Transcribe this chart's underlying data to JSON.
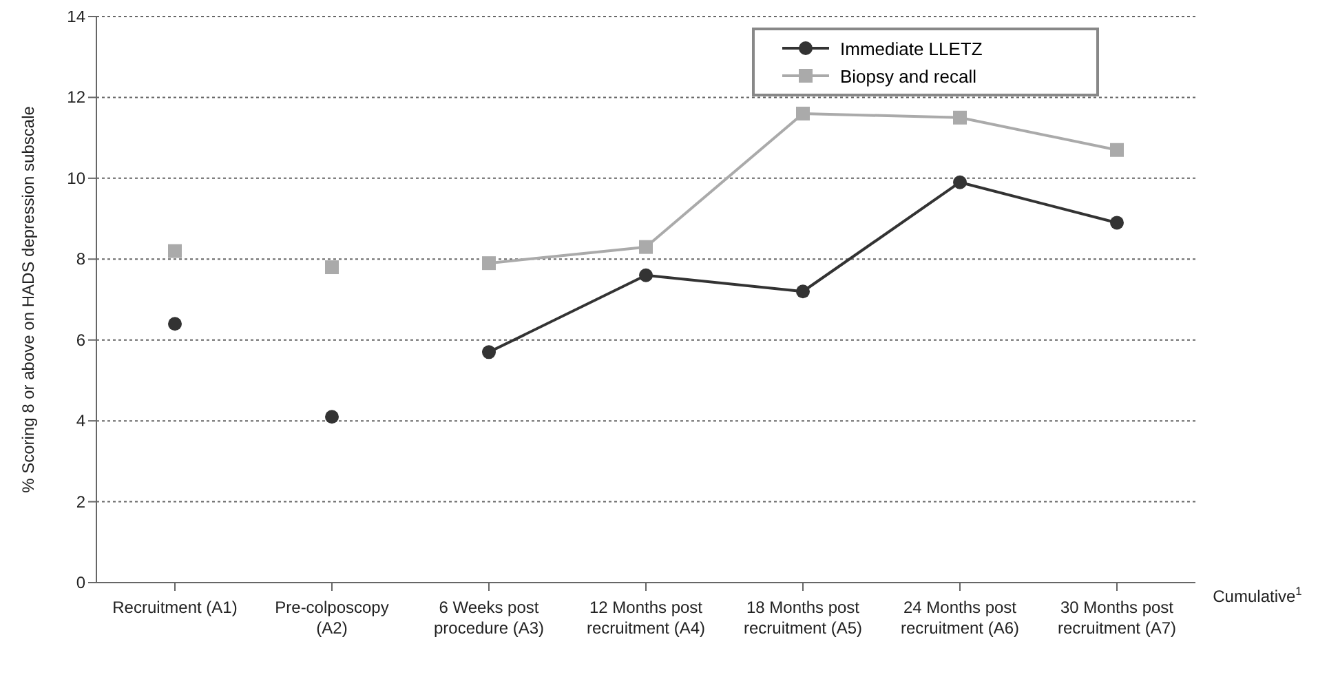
{
  "chart_data": {
    "type": "line",
    "ylabel": "% Scoring 8 or above on HADS depression subscale",
    "xlabel": "Cumulative$^{1}$",
    "categories": [
      "Recruitment (A1)",
      "Pre-colposcopy (A2)",
      "6 Weeks post procedure (A3)",
      "12 Months post recruitment (A4)",
      "18 Months post recruitment (A5)",
      "24 Months post recruitment (A6)",
      "30 Months post recruitment (A7)"
    ],
    "series": [
      {
        "name": "Immediate LLETZ",
        "color": "#333333",
        "marker": "circle",
        "values": [
          null,
          null,
          5.7,
          7.6,
          7.2,
          9.9,
          8.9
        ]
      },
      {
        "name": "Biopsy and recall",
        "color": "#aaaaaa",
        "marker": "square",
        "values": [
          null,
          null,
          7.9,
          8.3,
          11.6,
          11.5,
          10.7
        ]
      },
      {
        "type": "scatter",
        "color": "#333333",
        "marker": "circle",
        "x": [
          "Recruitment (A1)",
          "Pre-colposcopy (A2)"
        ],
        "values": [
          6.4,
          4.1
        ]
      },
      {
        "type": "scatter",
        "color": "#aaaaaa",
        "marker": "square",
        "x": [
          "Recruitment (A1)",
          "Pre-colposcopy (A2)"
        ],
        "values": [
          8.2,
          7.8
        ]
      }
    ],
    "ylim": [
      0,
      14
    ],
    "yticks": [
      0,
      2,
      4,
      6,
      8,
      10,
      12,
      14
    ],
    "grid": "y",
    "legend": "top right"
  }
}
